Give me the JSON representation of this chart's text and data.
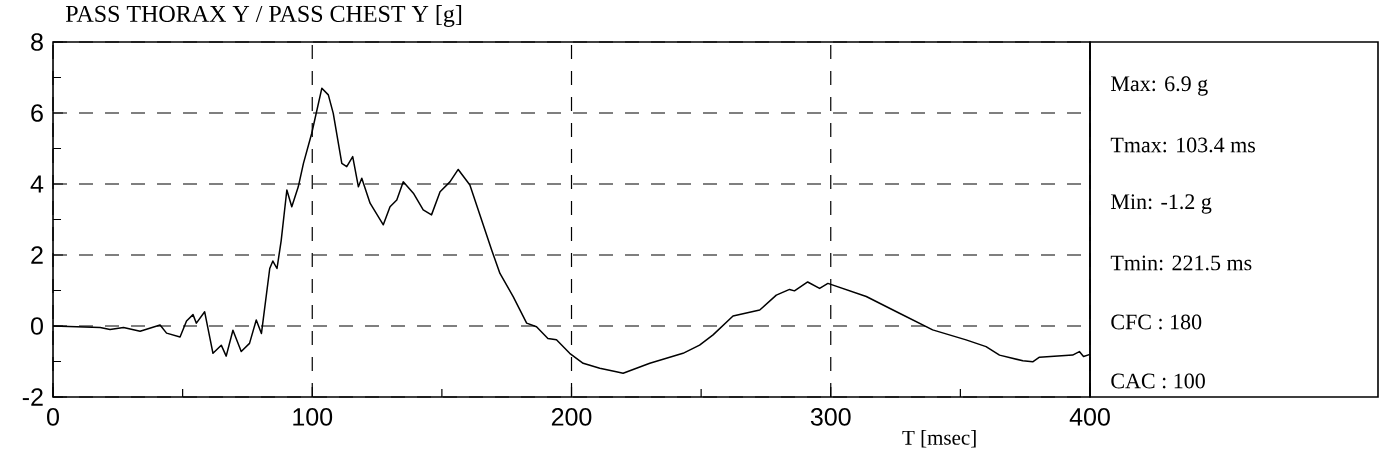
{
  "chart_data": {
    "type": "line",
    "title": "PASS THORAX Y / PASS CHEST Y [g]",
    "xlabel": "T [msec]",
    "annotations": [
      "Max:   6.9 g",
      "Tmax: 103.4 ms",
      "Min:   -1.2 g",
      "Tmin: 221.5 ms",
      "CFC : 180",
      "CAC : 100"
    ],
    "x": [
      0,
      18.2,
      22,
      27.2,
      33.6,
      41.3,
      43.8,
      49,
      51.5,
      54,
      55.3,
      58.5,
      61.7,
      64.9,
      66.8,
      69.4,
      72.6,
      75.8,
      78.4,
      80.4,
      83.6,
      84.8,
      86.4,
      88,
      90.2,
      92.1,
      94.6,
      96.6,
      99.8,
      103.7,
      106.2,
      108.1,
      111.4,
      113.3,
      115.6,
      117.8,
      119.1,
      122.3,
      127.4,
      130,
      132.6,
      135.1,
      139,
      142.8,
      146,
      149.3,
      153.1,
      156.3,
      160.8,
      169.2,
      172.4,
      177.5,
      182.7,
      186.5,
      190.9,
      194.2,
      199.3,
      204.5,
      210.9,
      217.3,
      219.9,
      230.2,
      243,
      249.4,
      254.6,
      262.3,
      272.6,
      279,
      284.1,
      286,
      291.1,
      295.7,
      298.9,
      313.7,
      326.5,
      339.3,
      352.2,
      359.9,
      365.1,
      374.1,
      377.9,
      380.5,
      393.3,
      395.9,
      397.5,
      400
    ],
    "values": [
      0,
      -0.04,
      -0.1,
      -0.04,
      -0.15,
      0.03,
      -0.2,
      -0.31,
      0.14,
      0.32,
      0.08,
      0.4,
      -0.77,
      -0.54,
      -0.85,
      -0.12,
      -0.72,
      -0.49,
      0.17,
      -0.21,
      1.62,
      1.83,
      1.62,
      2.4,
      3.83,
      3.36,
      3.92,
      4.58,
      5.43,
      6.7,
      6.51,
      5.99,
      4.58,
      4.49,
      4.77,
      3.92,
      4.16,
      3.46,
      2.85,
      3.36,
      3.55,
      4.06,
      3.74,
      3.27,
      3.13,
      3.78,
      4.06,
      4.41,
      3.97,
      2.14,
      1.48,
      0.83,
      0.08,
      -0.02,
      -0.35,
      -0.39,
      -0.77,
      -1.05,
      -1.19,
      -1.29,
      -1.33,
      -1.05,
      -0.77,
      -0.54,
      -0.25,
      0.28,
      0.45,
      0.87,
      1.03,
      0.99,
      1.24,
      1.06,
      1.2,
      0.83,
      0.36,
      -0.11,
      -0.39,
      -0.58,
      -0.82,
      -0.98,
      -1.01,
      -0.88,
      -0.82,
      -0.72,
      -0.86,
      -0.8
    ],
    "color": "#000000",
    "xlim": [
      0,
      400
    ],
    "ylim": [
      -2,
      8
    ],
    "xticks": [
      0,
      {
        "value": 50,
        "label": null
      },
      100,
      {
        "value": 150,
        "label": null
      },
      200,
      {
        "value": 250,
        "label": null
      },
      300,
      {
        "value": 350,
        "label": null
      },
      400
    ],
    "yticks": [
      -2,
      {
        "value": -1,
        "label": null
      },
      0,
      {
        "value": 1,
        "label": null
      },
      2,
      {
        "value": 3,
        "label": null
      },
      4,
      {
        "value": 5,
        "label": null
      },
      6,
      {
        "value": 7,
        "label": null
      },
      8
    ],
    "grid": true
  }
}
